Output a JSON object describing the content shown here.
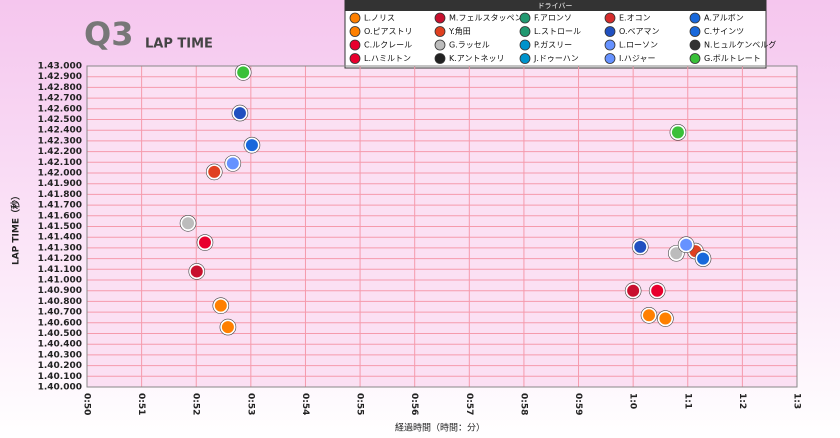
{
  "chart_data": {
    "type": "scatter",
    "title": "Q3",
    "subtitle": "LAP TIME",
    "x_label": "経過時間（時間：分）",
    "y_label": "LAP TIME（秒）",
    "legend_title": "ドライバー",
    "xlim": [
      50,
      63
    ],
    "ylim": [
      100,
      103
    ],
    "grid": true,
    "xticks": [
      {
        "value": 50,
        "label": "0:50"
      },
      {
        "value": 51,
        "label": "0:51"
      },
      {
        "value": 52,
        "label": "0:52"
      },
      {
        "value": 53,
        "label": "0:53"
      },
      {
        "value": 54,
        "label": "0:54"
      },
      {
        "value": 55,
        "label": "0:55"
      },
      {
        "value": 56,
        "label": "0:56"
      },
      {
        "value": 57,
        "label": "0:57"
      },
      {
        "value": 58,
        "label": "0:58"
      },
      {
        "value": 59,
        "label": "0:59"
      },
      {
        "value": 60,
        "label": "1:0"
      },
      {
        "value": 61,
        "label": "1:1"
      },
      {
        "value": 62,
        "label": "1:2"
      },
      {
        "value": 63,
        "label": "1:3"
      }
    ],
    "yticks": [
      {
        "value": 100,
        "label": "1.40.000"
      },
      {
        "value": 100.1,
        "label": "1.40.100"
      },
      {
        "value": 100.2,
        "label": "1.40.200"
      },
      {
        "value": 100.3,
        "label": "1.40.300"
      },
      {
        "value": 100.4,
        "label": "1.40.400"
      },
      {
        "value": 100.5,
        "label": "1.40.500"
      },
      {
        "value": 100.6,
        "label": "1.40.600"
      },
      {
        "value": 100.7,
        "label": "1.40.700"
      },
      {
        "value": 100.8,
        "label": "1.40.800"
      },
      {
        "value": 100.9,
        "label": "1.40.900"
      },
      {
        "value": 101,
        "label": "1.41.000"
      },
      {
        "value": 101.1,
        "label": "1.41.100"
      },
      {
        "value": 101.2,
        "label": "1.41.200"
      },
      {
        "value": 101.3,
        "label": "1.41.300"
      },
      {
        "value": 101.4,
        "label": "1.41.400"
      },
      {
        "value": 101.5,
        "label": "1.41.500"
      },
      {
        "value": 101.6,
        "label": "1.41.600"
      },
      {
        "value": 101.7,
        "label": "1.41.700"
      },
      {
        "value": 101.8,
        "label": "1.41.800"
      },
      {
        "value": 101.9,
        "label": "1.41.900"
      },
      {
        "value": 102,
        "label": "1.42.000"
      },
      {
        "value": 102.1,
        "label": "1.42.100"
      },
      {
        "value": 102.2,
        "label": "1.42.200"
      },
      {
        "value": 102.3,
        "label": "1.42.300"
      },
      {
        "value": 102.4,
        "label": "1.42.400"
      },
      {
        "value": 102.5,
        "label": "1.42.500"
      },
      {
        "value": 102.6,
        "label": "1.42.600"
      },
      {
        "value": 102.7,
        "label": "1.42.700"
      },
      {
        "value": 102.8,
        "label": "1.42.800"
      },
      {
        "value": 102.9,
        "label": "1.42.900"
      },
      {
        "value": 103,
        "label": "1.43.000"
      }
    ],
    "series": [
      {
        "name": "L.ノリス",
        "color": "#ff8000",
        "x": [
          52.58,
          60.59
        ],
        "values": [
          100.56,
          100.64
        ]
      },
      {
        "name": "O.ピアストリ",
        "color": "#ff8000",
        "x": [
          52.45,
          60.29
        ],
        "values": [
          100.76,
          100.67
        ]
      },
      {
        "name": "C.ルクレール",
        "color": "#e8002d",
        "x": [
          52.16,
          60.44
        ],
        "values": [
          101.35,
          100.9
        ]
      },
      {
        "name": "L.ハミルトン",
        "color": "#e8002d",
        "x": [],
        "values": []
      },
      {
        "name": "M.フェルスタッペン",
        "color": "#c8102e",
        "x": [
          52.01,
          60.0
        ],
        "values": [
          101.08,
          100.9
        ]
      },
      {
        "name": "Y.角田",
        "color": "#e04020",
        "x": [
          52.33,
          61.14
        ],
        "values": [
          102.01,
          101.27
        ]
      },
      {
        "name": "G.ラッセル",
        "color": "#bcbcbc",
        "x": [
          51.85,
          60.79
        ],
        "values": [
          101.53,
          101.25
        ]
      },
      {
        "name": "K.アントネッリ",
        "color": "#222222",
        "x": [],
        "values": []
      },
      {
        "name": "F.アロンソ",
        "color": "#229971",
        "x": [],
        "values": []
      },
      {
        "name": "L.ストロール",
        "color": "#229971",
        "x": [],
        "values": []
      },
      {
        "name": "P.ガスリー",
        "color": "#0093cc",
        "x": [],
        "values": []
      },
      {
        "name": "J.ドゥーハン",
        "color": "#0093cc",
        "x": [],
        "values": []
      },
      {
        "name": "E.オコン",
        "color": "#d62c2c",
        "x": [],
        "values": []
      },
      {
        "name": "O.ベアマン",
        "color": "#2050c0",
        "x": [
          52.8,
          60.13
        ],
        "values": [
          102.56,
          101.31
        ]
      },
      {
        "name": "L.ローソン",
        "color": "#6692ff",
        "x": [
          52.67,
          60.97
        ],
        "values": [
          102.09,
          101.33
        ]
      },
      {
        "name": "I.ハジャー",
        "color": "#6692ff",
        "x": [],
        "values": []
      },
      {
        "name": "A.アルボン",
        "color": "#1868db",
        "x": [
          53.02,
          61.28
        ],
        "values": [
          102.26,
          101.2
        ]
      },
      {
        "name": "C.サインツ",
        "color": "#1868db",
        "x": [],
        "values": []
      },
      {
        "name": "N.ヒュルケンベルグ",
        "color": "#333333",
        "x": [],
        "values": []
      },
      {
        "name": "G.ボルトレート",
        "color": "#39c039",
        "x": [
          52.86,
          60.82
        ],
        "values": [
          102.94,
          102.38
        ]
      }
    ]
  }
}
